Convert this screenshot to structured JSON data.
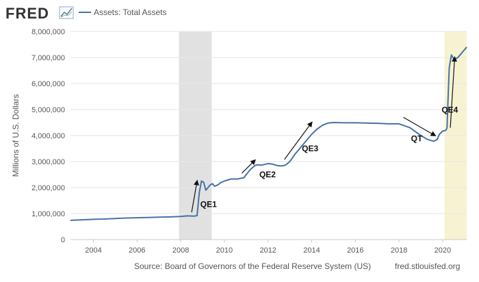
{
  "header": {
    "logo_text": "FRED",
    "legend_label": "Assets: Total Assets"
  },
  "footer": {
    "source": "Source: Board of Governors of the Federal Reserve System (US)",
    "site": "fred.stlouisfed.org"
  },
  "colors": {
    "series": "#4572a7",
    "recession": "#e1e1e1",
    "covid_band": "#f7f3d2",
    "grid": "#e6e6e6",
    "text": "#555555"
  },
  "chart_data": {
    "type": "line",
    "title": "",
    "ylabel": "Millions of U.S. Dollars",
    "xlabel": "",
    "xlim": [
      2002.95,
      2021.1
    ],
    "ylim": [
      0,
      8000000
    ],
    "x_ticks": [
      "2004",
      "2006",
      "2008",
      "2010",
      "2012",
      "2014",
      "2016",
      "2018",
      "2020"
    ],
    "y_ticks": [
      "0",
      "1,000,000",
      "2,000,000",
      "3,000,000",
      "4,000,000",
      "5,000,000",
      "6,000,000",
      "7,000,000",
      "8,000,000"
    ],
    "grid": "horizontal",
    "legend": "top-left",
    "series": [
      {
        "name": "Assets: Total Assets",
        "x": [
          2002.95,
          2003.5,
          2004.0,
          2004.5,
          2005.0,
          2005.5,
          2006.0,
          2006.5,
          2007.0,
          2007.5,
          2008.0,
          2008.3,
          2008.6,
          2008.75,
          2008.85,
          2008.95,
          2009.05,
          2009.15,
          2009.25,
          2009.35,
          2009.45,
          2009.55,
          2009.7,
          2009.85,
          2010.0,
          2010.3,
          2010.6,
          2010.9,
          2011.0,
          2011.2,
          2011.4,
          2011.5,
          2011.7,
          2011.9,
          2012.0,
          2012.2,
          2012.4,
          2012.6,
          2012.8,
          2013.0,
          2013.25,
          2013.5,
          2013.75,
          2014.0,
          2014.25,
          2014.5,
          2014.75,
          2015.0,
          2015.5,
          2016.0,
          2016.5,
          2017.0,
          2017.5,
          2018.0,
          2018.5,
          2019.0,
          2019.3,
          2019.6,
          2019.75,
          2019.85,
          2020.0,
          2020.15,
          2020.2,
          2020.25,
          2020.3,
          2020.4,
          2020.5,
          2020.6,
          2020.7,
          2020.8,
          2020.9,
          2021.0,
          2021.1
        ],
        "values": [
          740000,
          760000,
          780000,
          790000,
          810000,
          830000,
          840000,
          850000,
          860000,
          870000,
          890000,
          910000,
          900000,
          920000,
          1800000,
          2250000,
          2200000,
          1900000,
          2000000,
          2100000,
          2150000,
          2050000,
          2100000,
          2200000,
          2250000,
          2330000,
          2330000,
          2380000,
          2500000,
          2700000,
          2850000,
          2870000,
          2860000,
          2900000,
          2920000,
          2900000,
          2850000,
          2830000,
          2860000,
          3000000,
          3300000,
          3550000,
          3800000,
          4050000,
          4250000,
          4400000,
          4480000,
          4500000,
          4490000,
          4490000,
          4480000,
          4470000,
          4450000,
          4450000,
          4300000,
          4000000,
          3850000,
          3780000,
          3850000,
          4050000,
          4170000,
          4200000,
          4300000,
          5500000,
          6600000,
          7100000,
          6950000,
          6950000,
          7000000,
          7100000,
          7200000,
          7300000,
          7400000
        ]
      }
    ],
    "bands": [
      {
        "label": "recession",
        "x_start": 2007.92,
        "x_end": 2009.42
      },
      {
        "label": "covid",
        "x_start": 2020.08,
        "x_end": 2021.1
      }
    ],
    "annotations": [
      {
        "text": "QE1",
        "x": 2008.9,
        "y": 1250000,
        "arrow_from": [
          2008.5,
          1050000
        ],
        "arrow_to": [
          2008.75,
          2250000
        ]
      },
      {
        "text": "QE2",
        "x": 2011.6,
        "y": 2400000,
        "arrow_from": [
          2010.8,
          2550000
        ],
        "arrow_to": [
          2011.4,
          3050000
        ]
      },
      {
        "text": "QE3",
        "x": 2013.55,
        "y": 3400000,
        "arrow_from": [
          2012.75,
          3080000
        ],
        "arrow_to": [
          2014.0,
          4500000
        ]
      },
      {
        "text": "QT",
        "x": 2018.55,
        "y": 3780000,
        "arrow_from": [
          2018.2,
          4700000
        ],
        "arrow_to": [
          2019.65,
          4000000
        ]
      },
      {
        "text": "QE4",
        "x": 2019.95,
        "y": 4880000,
        "arrow_from": [
          2020.35,
          4300000
        ],
        "arrow_to": [
          2020.55,
          7000000
        ]
      }
    ]
  }
}
